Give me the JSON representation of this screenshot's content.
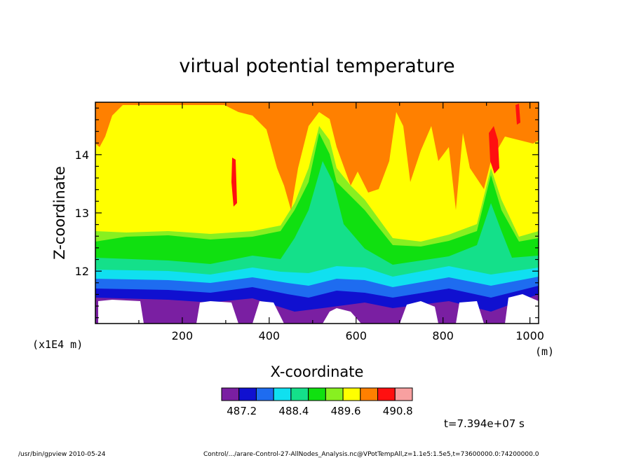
{
  "chart_data": {
    "type": "heatmap",
    "title": "virtual potential temperature",
    "xlabel": "X-coordinate",
    "ylabel": "Z-coordinate",
    "x_unit": "(m)",
    "y_scale_label": "(x1E4 m)",
    "xlim": [
      0,
      1020
    ],
    "ylim": [
      11.1,
      14.9
    ],
    "x_ticks": [
      "200",
      "400",
      "600",
      "800",
      "1000"
    ],
    "x_tick_values": [
      200,
      400,
      600,
      800,
      1000
    ],
    "y_ticks": [
      "12",
      "13",
      "14"
    ],
    "y_tick_values": [
      12,
      13,
      14
    ],
    "colorbar": {
      "labels": [
        "487.2",
        "488.4",
        "489.6",
        "490.8"
      ],
      "label_values": [
        487.2,
        488.4,
        489.6,
        490.8
      ],
      "colors": [
        "#7a1fa2",
        "#1010d0",
        "#1e6cf0",
        "#10e0f0",
        "#14e08a",
        "#10e010",
        "#88f020",
        "#ffff00",
        "#ff8000",
        "#ff1010",
        "#f8a0a0"
      ]
    },
    "time_label": "t=7.394e+07 s",
    "footer_left": "/usr/bin/gpview  2010-05-24",
    "footer_right": "Control/.../arare-Control-27-AllNodes_Analysis.nc@VPotTempAll,z=1.1e5:1.5e5,t=73600000.0:74200000.0"
  }
}
